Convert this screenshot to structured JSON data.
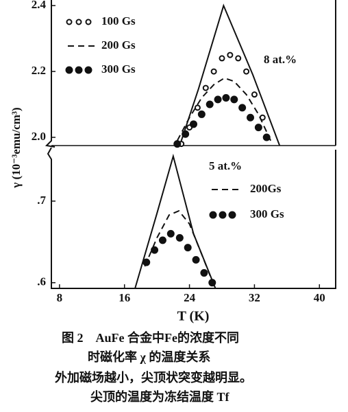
{
  "chart_data": [
    {
      "type": "line",
      "annotation": "8 at.%",
      "ylim": [
        1.975,
        2.417
      ],
      "yticks": [
        {
          "value": 2.0,
          "label": "2.0"
        },
        2.2,
        2.4
      ],
      "xlim": [
        7,
        42
      ],
      "series": [
        {
          "style": "solid",
          "color": "#111",
          "x": [
            22.8,
            25.1,
            28.2,
            31.8,
            35.1
          ],
          "values": [
            1.975,
            2.146,
            2.4,
            2.19,
            1.975
          ]
        },
        {
          "name": "100 Gs",
          "style": "open-circle",
          "color": "#111",
          "x": [
            23,
            24,
            25,
            26,
            27,
            28,
            29,
            30,
            31,
            32,
            33
          ],
          "values": [
            1.98,
            2.03,
            2.09,
            2.15,
            2.2,
            2.24,
            2.25,
            2.24,
            2.2,
            2.13,
            2.06
          ]
        },
        {
          "name": "200 Gs",
          "style": "dash",
          "color": "#111",
          "x": [
            22.5,
            24,
            25.5,
            27,
            28.3,
            29.5,
            31,
            32.5,
            34
          ],
          "values": [
            1.99,
            2.06,
            2.12,
            2.16,
            2.18,
            2.17,
            2.13,
            2.07,
            1.99
          ]
        },
        {
          "name": "300 Gs",
          "style": "filled-circle",
          "color": "#111",
          "x": [
            22.5,
            23.5,
            24.5,
            25.5,
            26.5,
            27.5,
            28.5,
            29.5,
            30.5,
            31.5,
            32.5,
            33.5
          ],
          "values": [
            1.98,
            2.01,
            2.04,
            2.07,
            2.1,
            2.115,
            2.12,
            2.115,
            2.09,
            2.06,
            2.03,
            2.0
          ]
        }
      ]
    },
    {
      "type": "line",
      "annotation": "5 at.%",
      "ylim": [
        0.593,
        0.763
      ],
      "yticks": [
        {
          "value": 0.6,
          "label": ".6"
        },
        {
          "value": 0.7,
          "label": ".7"
        }
      ],
      "xlim": [
        7,
        42
      ],
      "xticks": [
        8,
        16,
        24,
        32,
        40
      ],
      "series": [
        {
          "style": "solid",
          "color": "#111",
          "x": [
            17.3,
            20,
            22,
            24.5,
            27.2
          ],
          "values": [
            0.593,
            0.685,
            0.755,
            0.66,
            0.593
          ]
        },
        {
          "name": "200Gs",
          "style": "dash",
          "color": "#111",
          "x": [
            18.5,
            20,
            21.5,
            22.7,
            24,
            25.5,
            27
          ],
          "values": [
            0.62,
            0.655,
            0.683,
            0.688,
            0.672,
            0.635,
            0.597
          ]
        },
        {
          "name": "300 Gs",
          "style": "filled-circle",
          "color": "#111",
          "x": [
            18.7,
            19.7,
            20.7,
            21.7,
            22.8,
            23.8,
            24.8,
            25.8,
            26.8
          ],
          "values": [
            0.625,
            0.64,
            0.652,
            0.66,
            0.655,
            0.643,
            0.628,
            0.612,
            0.6
          ]
        }
      ]
    }
  ],
  "x_label": "T (K)",
  "y_label": "γ (10⁻³emu/cm³)",
  "caption": [
    "图 2　AuFe 合金中Fe的浓度不同",
    "时磁化率 χ 的温度关系",
    "外加磁场越小，尖顶状突变越明显。",
    "尖顶的温度为冻结温度 Tf"
  ]
}
